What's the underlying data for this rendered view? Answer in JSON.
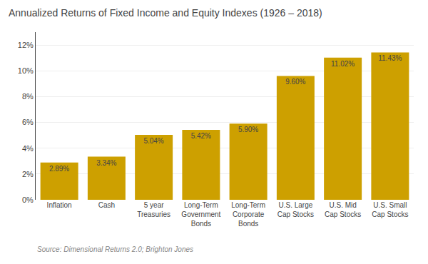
{
  "chart_data": {
    "type": "bar",
    "title": "Annualized Returns of Fixed Income and Equity Indexes (1926 – 2018)",
    "categories": [
      "Inflation",
      "Cash",
      "5 year\nTreasuries",
      "Long-Term\nGovernment\nBonds",
      "Long-Term\nCorporate\nBonds",
      "U.S. Large\nCap Stocks",
      "U.S. Mid\nCap Stocks",
      "U.S. Small\nCap Stocks"
    ],
    "values": [
      2.89,
      3.34,
      5.04,
      5.42,
      5.9,
      9.6,
      11.02,
      11.43
    ],
    "value_labels": [
      "2.89%",
      "3.34%",
      "5.04%",
      "5.42%",
      "5.90%",
      "9.60%",
      "11.02%",
      "11.43%"
    ],
    "data_labels": true,
    "color": "#CDA000",
    "ylim": [
      0,
      13
    ],
    "yticks": [
      {
        "value": 0,
        "label": "0%"
      },
      {
        "value": 2,
        "label": "2%"
      },
      {
        "value": 4,
        "label": "4%"
      },
      {
        "value": 6,
        "label": "6%"
      },
      {
        "value": 8,
        "label": "8%"
      },
      {
        "value": 10,
        "label": "10%"
      },
      {
        "value": 12,
        "label": "12%"
      }
    ],
    "grid": true,
    "annotations": [
      "Source: Dimensional Returns 2.0; Brighton Jones"
    ]
  }
}
